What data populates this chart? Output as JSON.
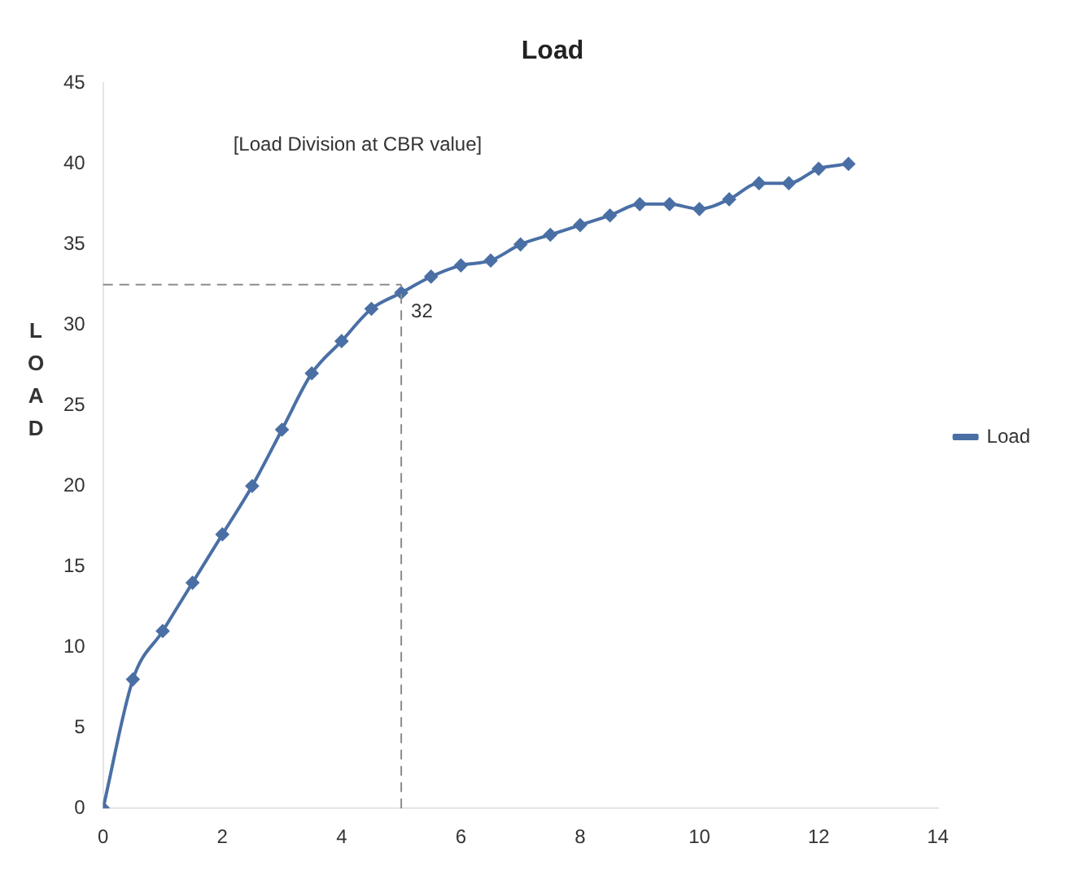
{
  "chart_data": {
    "type": "line",
    "title": "Load",
    "ylabel": "LOAD",
    "x": [
      0,
      0.5,
      1,
      1.5,
      2,
      2.5,
      3,
      3.5,
      4,
      4.5,
      5,
      5.5,
      6,
      6.5,
      7,
      7.5,
      8,
      8.5,
      9,
      9.5,
      10,
      10.5,
      11,
      11.5,
      12,
      12.5
    ],
    "series": [
      {
        "name": "Load",
        "color": "#4a6fa5",
        "values": [
          0,
          8,
          11,
          14,
          17,
          20,
          23.5,
          27,
          29,
          31,
          32,
          33,
          33.7,
          34,
          35,
          35.6,
          36.2,
          36.8,
          37.5,
          37.5,
          37.2,
          37.8,
          38.8,
          38.8,
          39.7,
          40
        ]
      }
    ],
    "xlim": [
      0,
      14
    ],
    "xticks": [
      0,
      2,
      4,
      6,
      8,
      10,
      12,
      14
    ],
    "ylim": [
      0,
      45
    ],
    "yticks": [
      0,
      5,
      10,
      15,
      20,
      25,
      30,
      35,
      40,
      45
    ],
    "ref_lines": [
      {
        "axis": "x",
        "value": 5,
        "line_style": "dashed",
        "color": "#8c8c8c"
      },
      {
        "axis": "y",
        "value": 32.5,
        "line_style": "dashed",
        "color": "#8c8c8c"
      }
    ],
    "annotations": [
      "[Load Division at CBR value]",
      {
        "text": "32",
        "x": 5,
        "y": 32
      }
    ],
    "legend": "right",
    "grid": false,
    "marker": "diamond",
    "line_style": "solid"
  }
}
